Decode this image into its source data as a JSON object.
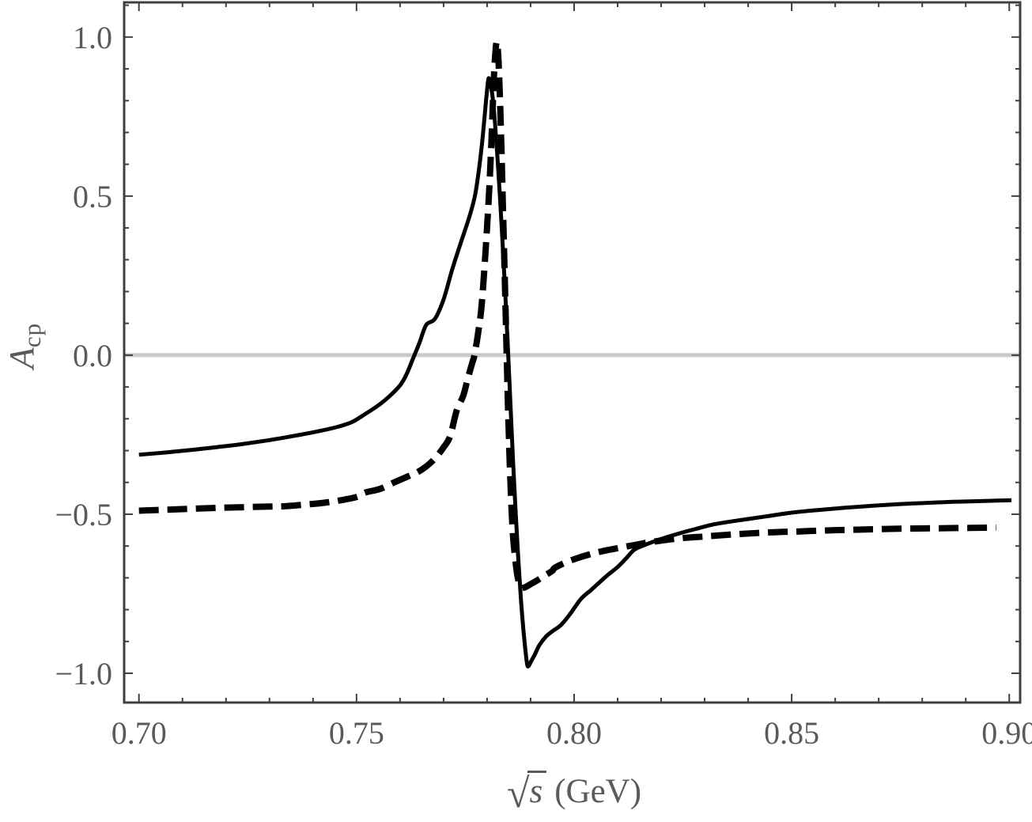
{
  "figure": {
    "x_title": {
      "radical": "√",
      "radicand": "s",
      "unit": "(GeV)"
    },
    "y_title": {
      "base": "A",
      "sub": "cp"
    }
  },
  "chart_data": {
    "type": "line",
    "title": "",
    "xlabel": "√s (GeV)",
    "ylabel": "A_cp",
    "xlim": [
      0.6966,
      0.9025
    ],
    "ylim": [
      -1.092,
      1.109
    ],
    "grid": false,
    "legend_position": "none",
    "frame_color": "#3f3f3f",
    "label_color": "#5a5a5a",
    "zero_line": {
      "value": 0.0,
      "color": "#c9c9c9",
      "width": 5
    },
    "x_axis": {
      "major_ticks": [
        0.7,
        0.75,
        0.8,
        0.85,
        0.9
      ],
      "major_labels": [
        "0.70",
        "0.75",
        "0.80",
        "0.85",
        "0.90"
      ],
      "minor_step": 0.01
    },
    "y_axis": {
      "major_ticks": [
        -1.0,
        -0.5,
        0.0,
        0.5,
        1.0
      ],
      "major_labels": [
        "−1.0",
        "−0.5",
        "0.0",
        "0.5",
        "1.0"
      ],
      "minor_step": 0.1
    },
    "series": [
      {
        "name": "solid-curve",
        "style": "solid",
        "color": "#000000",
        "width": 5,
        "points": [
          [
            0.7,
            -0.313
          ],
          [
            0.706,
            -0.306
          ],
          [
            0.712,
            -0.298
          ],
          [
            0.718,
            -0.289
          ],
          [
            0.724,
            -0.279
          ],
          [
            0.73,
            -0.267
          ],
          [
            0.736,
            -0.253
          ],
          [
            0.742,
            -0.237
          ],
          [
            0.746,
            -0.224
          ],
          [
            0.749,
            -0.21
          ],
          [
            0.752,
            -0.185
          ],
          [
            0.755,
            -0.158
          ],
          [
            0.7575,
            -0.13
          ],
          [
            0.76,
            -0.095
          ],
          [
            0.7615,
            -0.06
          ],
          [
            0.763,
            -0.01
          ],
          [
            0.7645,
            0.04
          ],
          [
            0.766,
            0.095
          ],
          [
            0.768,
            0.114
          ],
          [
            0.77,
            0.175
          ],
          [
            0.772,
            0.27
          ],
          [
            0.774,
            0.355
          ],
          [
            0.776,
            0.438
          ],
          [
            0.7772,
            0.5
          ],
          [
            0.778,
            0.57
          ],
          [
            0.7788,
            0.66
          ],
          [
            0.7794,
            0.745
          ],
          [
            0.7799,
            0.82
          ],
          [
            0.7803,
            0.868
          ],
          [
            0.7806,
            0.86
          ],
          [
            0.7812,
            0.82
          ],
          [
            0.7818,
            0.735
          ],
          [
            0.7824,
            0.62
          ],
          [
            0.783,
            0.49
          ],
          [
            0.7836,
            0.345
          ],
          [
            0.7842,
            0.19
          ],
          [
            0.7848,
            0.02
          ],
          [
            0.7854,
            -0.16
          ],
          [
            0.786,
            -0.34
          ],
          [
            0.7866,
            -0.5
          ],
          [
            0.7872,
            -0.645
          ],
          [
            0.7878,
            -0.77
          ],
          [
            0.7884,
            -0.87
          ],
          [
            0.789,
            -0.95
          ],
          [
            0.7893,
            -0.977
          ],
          [
            0.7897,
            -0.974
          ],
          [
            0.7901,
            -0.963
          ],
          [
            0.791,
            -0.94
          ],
          [
            0.792,
            -0.912
          ],
          [
            0.7935,
            -0.885
          ],
          [
            0.795,
            -0.868
          ],
          [
            0.797,
            -0.848
          ],
          [
            0.799,
            -0.815
          ],
          [
            0.8016,
            -0.766
          ],
          [
            0.804,
            -0.737
          ],
          [
            0.806,
            -0.712
          ],
          [
            0.808,
            -0.688
          ],
          [
            0.81,
            -0.666
          ],
          [
            0.812,
            -0.638
          ],
          [
            0.8138,
            -0.612
          ],
          [
            0.816,
            -0.598
          ],
          [
            0.82,
            -0.578
          ],
          [
            0.824,
            -0.561
          ],
          [
            0.828,
            -0.546
          ],
          [
            0.832,
            -0.532
          ],
          [
            0.836,
            -0.523
          ],
          [
            0.84,
            -0.515
          ],
          [
            0.845,
            -0.505
          ],
          [
            0.85,
            -0.495
          ],
          [
            0.856,
            -0.487
          ],
          [
            0.862,
            -0.48
          ],
          [
            0.868,
            -0.474
          ],
          [
            0.875,
            -0.468
          ],
          [
            0.88,
            -0.465
          ],
          [
            0.885,
            -0.462
          ],
          [
            0.89,
            -0.46
          ],
          [
            0.895,
            -0.458
          ],
          [
            0.9005,
            -0.456
          ]
        ]
      },
      {
        "name": "dashed-curve",
        "style": "dashed",
        "color": "#000000",
        "width": 8,
        "dash": [
          25,
          11
        ],
        "points": [
          [
            0.7,
            -0.489
          ],
          [
            0.706,
            -0.486
          ],
          [
            0.712,
            -0.483
          ],
          [
            0.718,
            -0.48
          ],
          [
            0.724,
            -0.478
          ],
          [
            0.73,
            -0.476
          ],
          [
            0.7335,
            -0.475
          ],
          [
            0.738,
            -0.47
          ],
          [
            0.742,
            -0.465
          ],
          [
            0.746,
            -0.457
          ],
          [
            0.75,
            -0.446
          ],
          [
            0.752,
            -0.432
          ],
          [
            0.7555,
            -0.42
          ],
          [
            0.759,
            -0.398
          ],
          [
            0.762,
            -0.38
          ],
          [
            0.764,
            -0.368
          ],
          [
            0.766,
            -0.35
          ],
          [
            0.768,
            -0.325
          ],
          [
            0.77,
            -0.29
          ],
          [
            0.7715,
            -0.255
          ],
          [
            0.773,
            -0.175
          ],
          [
            0.7745,
            -0.128
          ],
          [
            0.7755,
            -0.077
          ],
          [
            0.7765,
            -0.028
          ],
          [
            0.7771,
            0.0
          ],
          [
            0.778,
            0.075
          ],
          [
            0.7788,
            0.164
          ],
          [
            0.7797,
            0.338
          ],
          [
            0.7804,
            0.495
          ],
          [
            0.7809,
            0.64
          ],
          [
            0.7813,
            0.78
          ],
          [
            0.7816,
            0.88
          ],
          [
            0.7819,
            0.95
          ],
          [
            0.7822,
            0.985
          ],
          [
            0.7825,
            0.955
          ],
          [
            0.7828,
            0.87
          ],
          [
            0.7832,
            0.7
          ],
          [
            0.7836,
            0.49
          ],
          [
            0.784,
            0.28
          ],
          [
            0.7844,
            0.06
          ],
          [
            0.7848,
            -0.155
          ],
          [
            0.7852,
            -0.335
          ],
          [
            0.7856,
            -0.475
          ],
          [
            0.786,
            -0.575
          ],
          [
            0.7865,
            -0.645
          ],
          [
            0.787,
            -0.695
          ],
          [
            0.7877,
            -0.729
          ],
          [
            0.7884,
            -0.731
          ],
          [
            0.789,
            -0.728
          ],
          [
            0.79,
            -0.72
          ],
          [
            0.7915,
            -0.708
          ],
          [
            0.793,
            -0.695
          ],
          [
            0.795,
            -0.678
          ],
          [
            0.7955,
            -0.669
          ],
          [
            0.798,
            -0.652
          ],
          [
            0.801,
            -0.637
          ],
          [
            0.8047,
            -0.622
          ],
          [
            0.808,
            -0.612
          ],
          [
            0.811,
            -0.604
          ],
          [
            0.8138,
            -0.597
          ],
          [
            0.817,
            -0.589
          ],
          [
            0.821,
            -0.581
          ],
          [
            0.825,
            -0.575
          ],
          [
            0.83,
            -0.57
          ],
          [
            0.832,
            -0.568
          ],
          [
            0.837,
            -0.563
          ],
          [
            0.842,
            -0.559
          ],
          [
            0.847,
            -0.556
          ],
          [
            0.852,
            -0.554
          ],
          [
            0.858,
            -0.551
          ],
          [
            0.864,
            -0.549
          ],
          [
            0.87,
            -0.547
          ],
          [
            0.877,
            -0.545
          ],
          [
            0.884,
            -0.544
          ],
          [
            0.891,
            -0.543
          ],
          [
            0.897,
            -0.542
          ]
        ]
      }
    ]
  }
}
